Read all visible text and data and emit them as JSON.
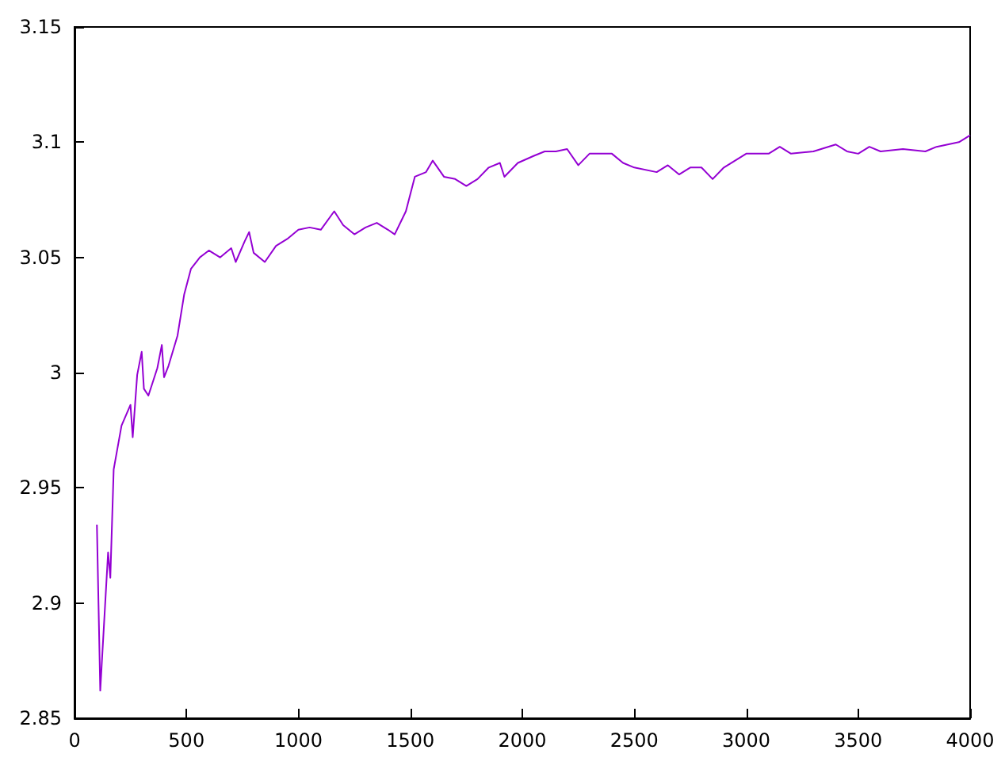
{
  "chart_data": {
    "type": "line",
    "color": "#9400d3",
    "marker": "none",
    "line_style": "solid",
    "x": [
      100,
      115,
      150,
      160,
      175,
      210,
      250,
      260,
      280,
      300,
      310,
      330,
      370,
      390,
      400,
      420,
      460,
      490,
      520,
      560,
      600,
      650,
      700,
      720,
      760,
      780,
      800,
      850,
      900,
      950,
      1000,
      1050,
      1100,
      1160,
      1200,
      1250,
      1300,
      1350,
      1400,
      1430,
      1480,
      1520,
      1570,
      1600,
      1650,
      1700,
      1750,
      1800,
      1850,
      1900,
      1920,
      1980,
      2050,
      2100,
      2150,
      2200,
      2250,
      2300,
      2400,
      2450,
      2500,
      2600,
      2650,
      2700,
      2750,
      2800,
      2850,
      2900,
      2950,
      3000,
      3100,
      3150,
      3200,
      3300,
      3400,
      3450,
      3500,
      3550,
      3600,
      3700,
      3800,
      3850,
      3900,
      3950,
      4000
    ],
    "values": [
      2.934,
      2.862,
      2.922,
      2.911,
      2.958,
      2.977,
      2.986,
      2.972,
      2.999,
      3.009,
      2.993,
      2.99,
      3.002,
      3.012,
      2.998,
      3.003,
      3.016,
      3.034,
      3.045,
      3.05,
      3.053,
      3.05,
      3.054,
      3.048,
      3.057,
      3.061,
      3.052,
      3.048,
      3.055,
      3.058,
      3.062,
      3.063,
      3.062,
      3.07,
      3.064,
      3.06,
      3.063,
      3.065,
      3.062,
      3.06,
      3.07,
      3.085,
      3.087,
      3.092,
      3.085,
      3.084,
      3.081,
      3.084,
      3.089,
      3.091,
      3.085,
      3.091,
      3.094,
      3.096,
      3.096,
      3.097,
      3.09,
      3.095,
      3.095,
      3.091,
      3.089,
      3.087,
      3.09,
      3.086,
      3.089,
      3.089,
      3.084,
      3.089,
      3.092,
      3.095,
      3.095,
      3.098,
      3.095,
      3.096,
      3.099,
      3.096,
      3.095,
      3.098,
      3.096,
      3.097,
      3.096,
      3.098,
      3.099,
      3.1,
      3.103
    ],
    "xlim": [
      0,
      4000
    ],
    "xticks": [
      0,
      500,
      1000,
      1500,
      2000,
      2500,
      3000,
      3500,
      4000
    ],
    "ylim": [
      2.85,
      3.15
    ],
    "yticks": [
      2.85,
      2.9,
      2.95,
      3,
      3.05,
      3.1,
      3.15
    ]
  }
}
